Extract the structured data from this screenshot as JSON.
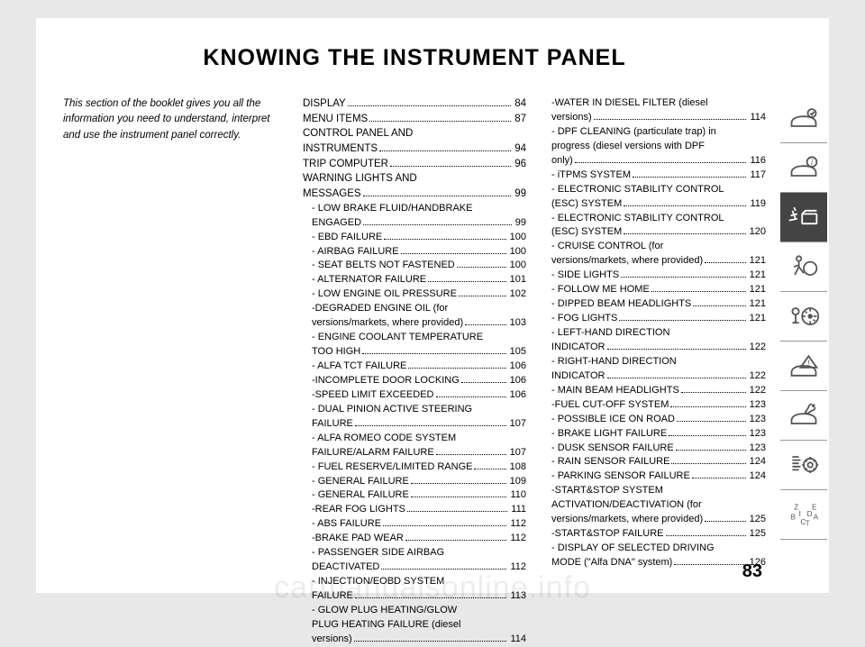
{
  "title": "KNOWING THE INSTRUMENT PANEL",
  "intro": "This section of the booklet gives you all the information you need to understand, interpret and use the instrument panel correctly.",
  "page_number": "83",
  "watermark": "carmanualsonline.info",
  "col2": [
    {
      "t": "main",
      "label": "DISPLAY",
      "pg": "84"
    },
    {
      "t": "main",
      "label": "MENU ITEMS",
      "pg": "87"
    },
    {
      "t": "maincont",
      "label": "CONTROL PANEL AND"
    },
    {
      "t": "main",
      "label": "INSTRUMENTS",
      "pg": "94"
    },
    {
      "t": "main",
      "label": "TRIP COMPUTER",
      "pg": "96"
    },
    {
      "t": "maincont",
      "label": "WARNING LIGHTS AND"
    },
    {
      "t": "main",
      "label": "MESSAGES",
      "pg": "99"
    },
    {
      "t": "subcont",
      "label": "- LOW BRAKE FLUID/HANDBRAKE"
    },
    {
      "t": "sub",
      "label": "ENGAGED",
      "pg": "99"
    },
    {
      "t": "sub",
      "label": "- EBD FAILURE",
      "pg": "100"
    },
    {
      "t": "sub",
      "label": "- AIRBAG FAILURE",
      "pg": "100"
    },
    {
      "t": "sub",
      "label": "- SEAT BELTS NOT FASTENED",
      "pg": "100"
    },
    {
      "t": "sub",
      "label": "- ALTERNATOR FAILURE",
      "pg": "101"
    },
    {
      "t": "sub",
      "label": "- LOW ENGINE OIL PRESSURE",
      "pg": "102"
    },
    {
      "t": "subcont",
      "label": "-DEGRADED ENGINE OIL (for"
    },
    {
      "t": "sub",
      "label": "versions/markets, where provided)",
      "pg": "103"
    },
    {
      "t": "subcont",
      "label": "- ENGINE COOLANT TEMPERATURE"
    },
    {
      "t": "sub",
      "label": "TOO HIGH",
      "pg": "105"
    },
    {
      "t": "sub",
      "label": "- ALFA TCT FAILURE",
      "pg": "106"
    },
    {
      "t": "sub",
      "label": "-INCOMPLETE DOOR LOCKING",
      "pg": "106"
    },
    {
      "t": "sub",
      "label": "-SPEED LIMIT EXCEEDED",
      "pg": "106"
    },
    {
      "t": "subcont",
      "label": "- DUAL PINION ACTIVE STEERING"
    },
    {
      "t": "sub",
      "label": "FAILURE",
      "pg": "107"
    },
    {
      "t": "subcont",
      "label": "- ALFA ROMEO CODE SYSTEM"
    },
    {
      "t": "sub",
      "label": "FAILURE/ALARM FAILURE",
      "pg": "107"
    },
    {
      "t": "sub",
      "label": "- FUEL RESERVE/LIMITED RANGE",
      "pg": "108"
    },
    {
      "t": "sub",
      "label": "- GENERAL FAILURE",
      "pg": "109"
    },
    {
      "t": "sub",
      "label": "- GENERAL FAILURE",
      "pg": "110"
    },
    {
      "t": "sub",
      "label": "-REAR FOG LIGHTS",
      "pg": "111"
    },
    {
      "t": "sub",
      "label": "- ABS FAILURE",
      "pg": "112"
    },
    {
      "t": "sub",
      "label": "-BRAKE PAD WEAR",
      "pg": "112"
    },
    {
      "t": "subcont",
      "label": "- PASSENGER SIDE AIRBAG"
    },
    {
      "t": "sub",
      "label": "DEACTIVATED",
      "pg": "112"
    },
    {
      "t": "subcont",
      "label": "- INJECTION/EOBD SYSTEM"
    },
    {
      "t": "sub",
      "label": "FAILURE",
      "pg": "113"
    },
    {
      "t": "subcont",
      "label": "- GLOW PLUG HEATING/GLOW"
    },
    {
      "t": "subcont",
      "label": "PLUG HEATING FAILURE (diesel"
    },
    {
      "t": "sub",
      "label": "versions)",
      "pg": "114"
    }
  ],
  "col3": [
    {
      "t": "subcont",
      "label": "-WATER IN DIESEL FILTER (diesel"
    },
    {
      "t": "sub",
      "label": "versions)",
      "pg": "114"
    },
    {
      "t": "subcont",
      "label": "- DPF CLEANING (particulate trap) in"
    },
    {
      "t": "subcont",
      "label": "progress (diesel versions with DPF"
    },
    {
      "t": "sub",
      "label": "only)",
      "pg": "116"
    },
    {
      "t": "sub",
      "label": "- iTPMS SYSTEM",
      "pg": "117"
    },
    {
      "t": "subcont",
      "label": "- ELECTRONIC STABILITY CONTROL"
    },
    {
      "t": "sub",
      "label": "(ESC) SYSTEM",
      "pg": "119"
    },
    {
      "t": "subcont",
      "label": "- ELECTRONIC STABILITY CONTROL"
    },
    {
      "t": "sub",
      "label": "(ESC) SYSTEM",
      "pg": "120"
    },
    {
      "t": "subcont",
      "label": "- CRUISE CONTROL (for"
    },
    {
      "t": "sub",
      "label": "versions/markets, where provided)",
      "pg": "121"
    },
    {
      "t": "sub",
      "label": "- SIDE LIGHTS",
      "pg": "121"
    },
    {
      "t": "sub",
      "label": "- FOLLOW ME HOME",
      "pg": "121"
    },
    {
      "t": "sub",
      "label": "- DIPPED BEAM HEADLIGHTS",
      "pg": "121"
    },
    {
      "t": "sub",
      "label": "- FOG LIGHTS",
      "pg": "121"
    },
    {
      "t": "subcont",
      "label": "- LEFT-HAND DIRECTION"
    },
    {
      "t": "sub",
      "label": "INDICATOR",
      "pg": "122"
    },
    {
      "t": "subcont",
      "label": "- RIGHT-HAND DIRECTION"
    },
    {
      "t": "sub",
      "label": "INDICATOR",
      "pg": "122"
    },
    {
      "t": "sub",
      "label": "- MAIN BEAM HEADLIGHTS",
      "pg": "122"
    },
    {
      "t": "sub",
      "label": "-FUEL CUT-OFF SYSTEM",
      "pg": "123"
    },
    {
      "t": "sub",
      "label": "- POSSIBLE ICE ON ROAD",
      "pg": "123"
    },
    {
      "t": "sub",
      "label": "- BRAKE LIGHT FAILURE",
      "pg": "123"
    },
    {
      "t": "sub",
      "label": "- DUSK SENSOR FAILURE",
      "pg": "123"
    },
    {
      "t": "sub",
      "label": "- RAIN SENSOR FAILURE",
      "pg": "124"
    },
    {
      "t": "sub",
      "label": "- PARKING SENSOR FAILURE",
      "pg": "124"
    },
    {
      "t": "subcont",
      "label": "-START&STOP SYSTEM"
    },
    {
      "t": "subcont",
      "label": "ACTIVATION/DEACTIVATION (for"
    },
    {
      "t": "sub",
      "label": "versions/markets, where provided)",
      "pg": "125"
    },
    {
      "t": "sub",
      "label": "-START&STOP FAILURE",
      "pg": "125"
    },
    {
      "t": "subcont",
      "label": "- DISPLAY OF SELECTED DRIVING"
    },
    {
      "t": "sub",
      "label": "MODE (\"Alfa DNA\" system)",
      "pg": "126"
    }
  ]
}
